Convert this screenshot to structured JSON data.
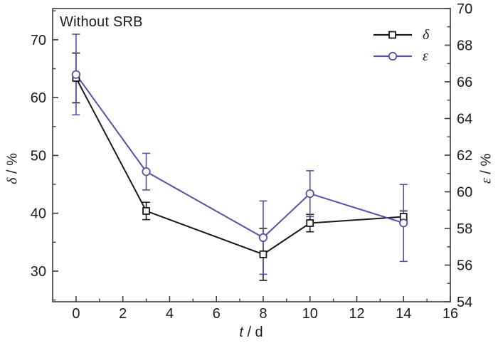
{
  "chart_data": {
    "type": "line",
    "title": "Without SRB",
    "grid": false,
    "legend_position": "top-right",
    "x_axis": {
      "symbol": "t",
      "suffix": " / d",
      "lim": [
        -1,
        16
      ],
      "major_ticks": [
        0,
        2,
        4,
        6,
        8,
        10,
        12,
        14,
        16
      ],
      "minor_ticks": [
        1,
        3,
        5,
        7,
        9,
        11,
        13,
        15
      ]
    },
    "left_axis": {
      "symbol": "δ",
      "suffix": " / %",
      "lim": [
        24.7,
        75.4
      ],
      "major_ticks": [
        30,
        40,
        50,
        60,
        70
      ],
      "minor_ticks": [
        25,
        35,
        45,
        55,
        65,
        75
      ]
    },
    "right_axis": {
      "symbol": "ε",
      "suffix": " / %",
      "lim": [
        54,
        70
      ],
      "major_ticks": [
        54,
        56,
        58,
        60,
        62,
        64,
        66,
        68,
        70
      ],
      "minor_ticks": [
        55,
        57,
        59,
        61,
        63,
        65,
        67,
        69
      ]
    },
    "series": [
      {
        "name": "δ",
        "axis": "left",
        "color": "#1a1a1a",
        "marker": "square",
        "x": [
          0,
          3,
          8,
          10,
          14
        ],
        "y": [
          63.4,
          40.4,
          32.9,
          38.3,
          39.4
        ],
        "err": [
          4.3,
          1.5,
          4.5,
          1.5,
          1.0
        ]
      },
      {
        "name": "ε",
        "axis": "right",
        "color": "#5253a3",
        "marker": "circle",
        "x": [
          0,
          3,
          8,
          10,
          14
        ],
        "y": [
          66.4,
          61.1,
          57.5,
          59.9,
          58.3
        ],
        "err": [
          2.2,
          1.0,
          2.0,
          1.25,
          2.1
        ]
      }
    ],
    "frame_color": "#3c3c3c",
    "text_color": "#1c1c1c"
  }
}
